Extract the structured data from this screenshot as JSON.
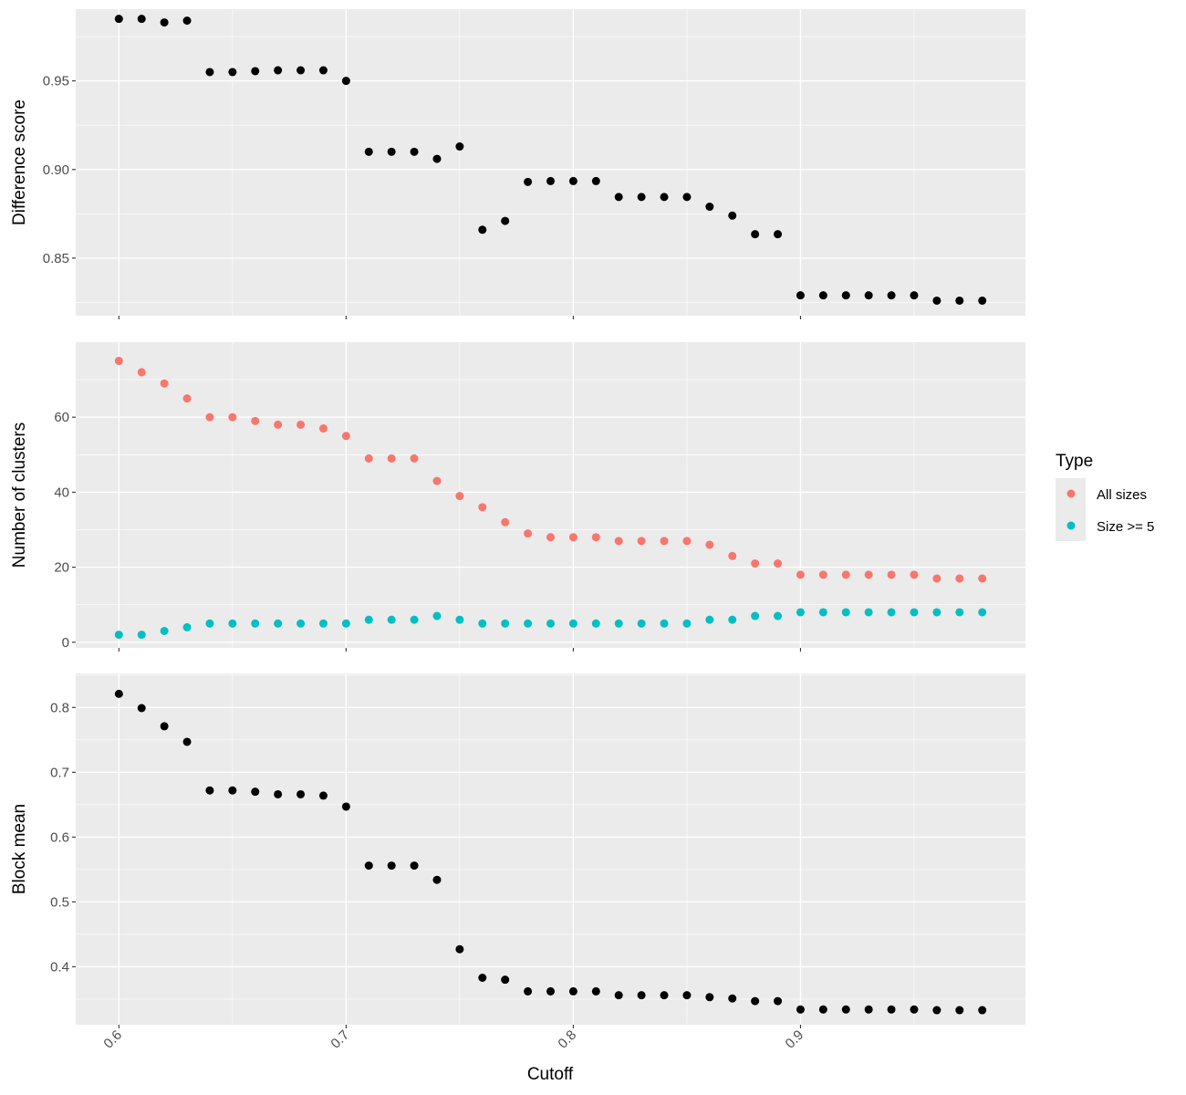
{
  "chart_data": {
    "type": "scatter",
    "xlabel": "Cutoff",
    "xlim": [
      0.581,
      0.999
    ],
    "xticks": [
      0.6,
      0.7,
      0.8,
      0.9
    ],
    "xtick_labels": [
      "0.6",
      "0.7",
      "0.8",
      "0.9"
    ],
    "x": [
      0.6,
      0.61,
      0.62,
      0.63,
      0.64,
      0.65,
      0.66,
      0.67,
      0.68,
      0.69,
      0.7,
      0.71,
      0.72,
      0.73,
      0.74,
      0.75,
      0.76,
      0.77,
      0.78,
      0.79,
      0.8,
      0.81,
      0.82,
      0.83,
      0.84,
      0.85,
      0.86,
      0.87,
      0.88,
      0.89,
      0.9,
      0.91,
      0.92,
      0.93,
      0.94,
      0.95,
      0.96,
      0.97,
      0.98
    ],
    "legend": {
      "title": "Type",
      "entries": [
        {
          "label": "All sizes",
          "color": "#F8766D"
        },
        {
          "label": "Size >= 5",
          "color": "#00BFC4"
        }
      ]
    },
    "panels": [
      {
        "ylabel": "Difference score",
        "ylim": [
          0.8175,
          0.9905
        ],
        "yticks": [
          0.85,
          0.9,
          0.95
        ],
        "ytick_labels": [
          "0.85",
          "0.90",
          "0.95"
        ],
        "series": [
          {
            "color": "#000000",
            "values": [
              0.985,
              0.985,
              0.983,
              0.984,
              0.955,
              0.955,
              0.9555,
              0.956,
              0.956,
              0.956,
              0.95,
              0.91,
              0.91,
              0.91,
              0.906,
              0.913,
              0.866,
              0.871,
              0.893,
              0.8935,
              0.8935,
              0.8935,
              0.8845,
              0.8845,
              0.8845,
              0.8845,
              0.879,
              0.874,
              0.8635,
              0.8635,
              0.829,
              0.829,
              0.829,
              0.829,
              0.829,
              0.829,
              0.826,
              0.826,
              0.826
            ]
          }
        ]
      },
      {
        "ylabel": "Number of clusters",
        "ylim": [
          -1.5,
          80
        ],
        "yticks": [
          0,
          20,
          40,
          60
        ],
        "ytick_labels": [
          "0",
          "20",
          "40",
          "60"
        ],
        "series": [
          {
            "name": "All sizes",
            "color": "#F8766D",
            "values": [
              75,
              72,
              69,
              65,
              60,
              60,
              59,
              58,
              58,
              57,
              55,
              49,
              49,
              49,
              43,
              39,
              36,
              32,
              29,
              28,
              28,
              28,
              27,
              27,
              27,
              27,
              26,
              23,
              21,
              21,
              18,
              18,
              18,
              18,
              18,
              18,
              17,
              17,
              17
            ]
          },
          {
            "name": "Size >= 5",
            "color": "#00BFC4",
            "values": [
              2,
              2,
              3,
              4,
              5,
              5,
              5,
              5,
              5,
              5,
              5,
              6,
              6,
              6,
              7,
              6,
              5,
              5,
              5,
              5,
              5,
              5,
              5,
              5,
              5,
              5,
              6,
              6,
              7,
              7,
              8,
              8,
              8,
              8,
              8,
              8,
              8,
              8,
              8
            ]
          }
        ]
      },
      {
        "ylabel": "Block mean",
        "ylim": [
          0.3105,
          0.8525
        ],
        "yticks": [
          0.4,
          0.5,
          0.6,
          0.7,
          0.8
        ],
        "ytick_labels": [
          "0.4",
          "0.5",
          "0.6",
          "0.7",
          "0.8"
        ],
        "series": [
          {
            "color": "#000000",
            "values": [
              0.821,
              0.799,
              0.771,
              0.747,
              0.672,
              0.672,
              0.67,
              0.666,
              0.666,
              0.664,
              0.647,
              0.556,
              0.556,
              0.556,
              0.534,
              0.427,
              0.383,
              0.38,
              0.362,
              0.362,
              0.362,
              0.362,
              0.356,
              0.356,
              0.356,
              0.356,
              0.353,
              0.351,
              0.347,
              0.347,
              0.334,
              0.334,
              0.334,
              0.334,
              0.334,
              0.334,
              0.333,
              0.333,
              0.333
            ]
          }
        ]
      }
    ]
  }
}
